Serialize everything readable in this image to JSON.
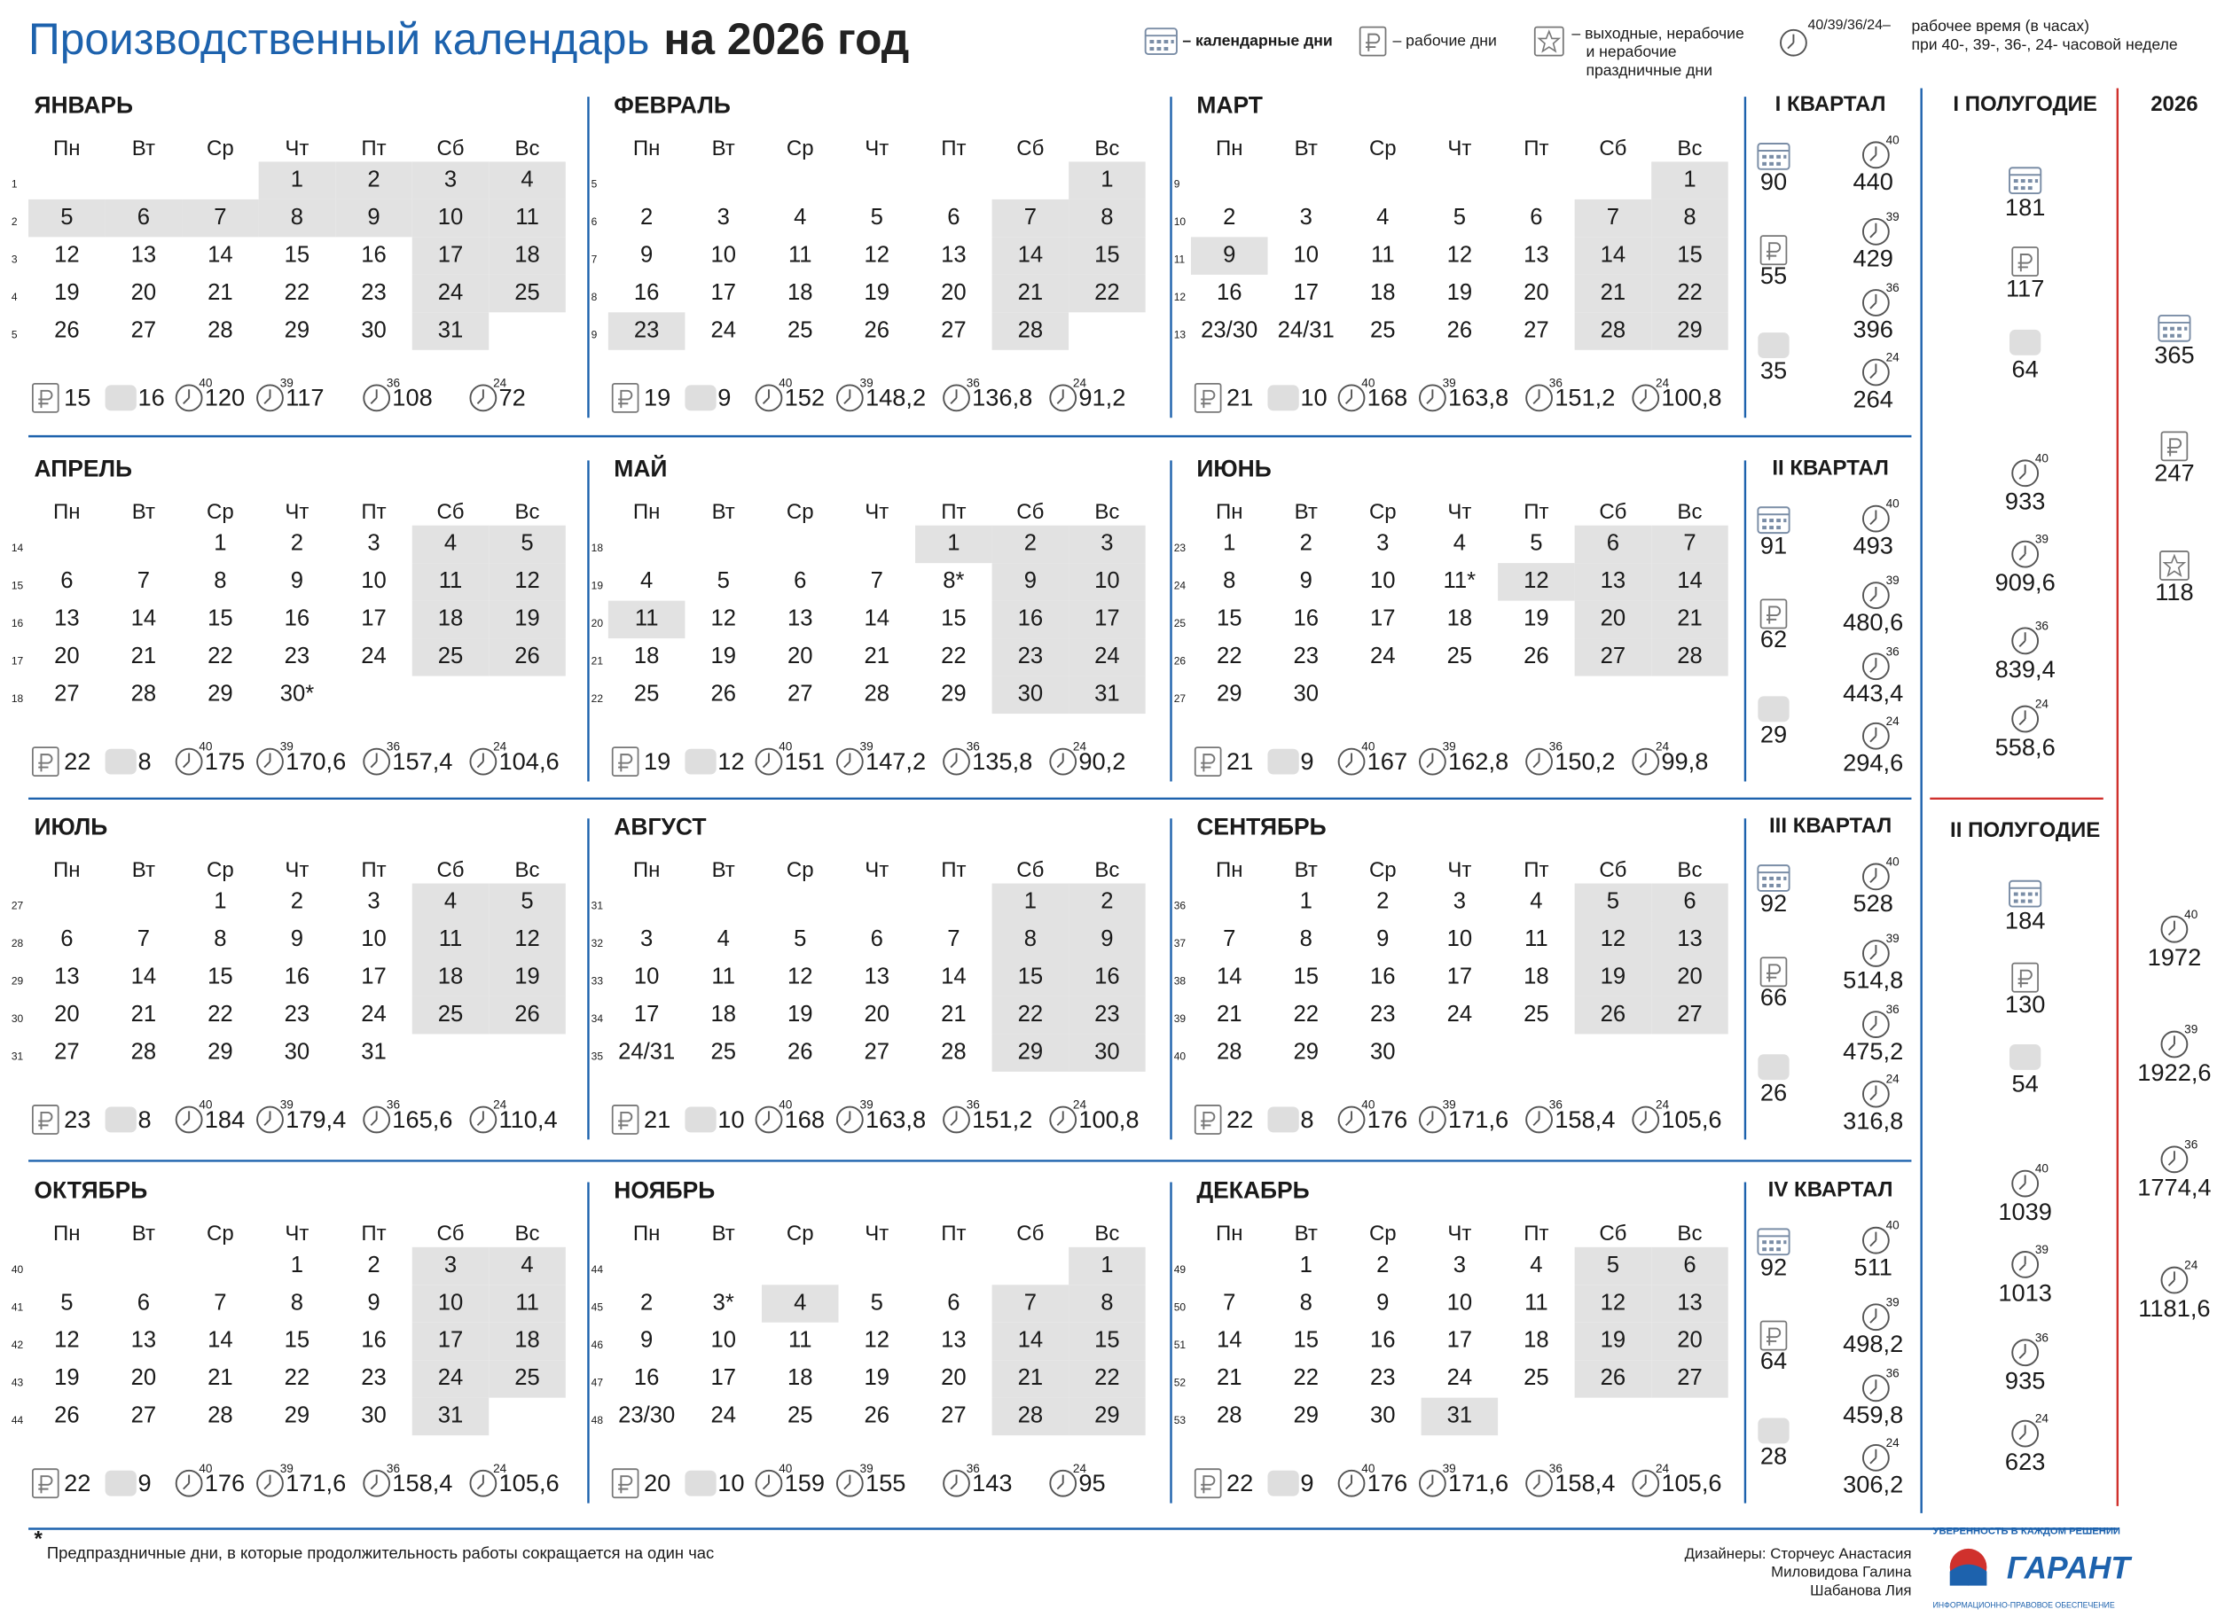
{
  "header": {
    "title_main": "Производственный календарь",
    "title_year": "на 2026 год"
  },
  "legend": {
    "calendar_days": "– календарные дни",
    "working_days": "– рабочие дни",
    "days_off": [
      "– выходные, нерабочие",
      "и нерабочие",
      "праздничные дни"
    ],
    "hours_label": "40/39/36/24–",
    "hours_text": [
      "рабочее время (в часах)",
      "при 40-, 39-, 36-, 24- часовой неделе"
    ]
  },
  "weekdays": [
    "Пн",
    "Вт",
    "Ср",
    "Чт",
    "Пт",
    "Сб",
    "Вс"
  ],
  "hour_norms": [
    "40",
    "39",
    "36",
    "24"
  ],
  "months": [
    {
      "name": "ЯНВАРЬ",
      "holidays": [
        1,
        2,
        5,
        6,
        7,
        8,
        9
      ],
      "weeks": [
        {
          "week": 1,
          "days": [
            null,
            null,
            null,
            1,
            2,
            3,
            4
          ]
        },
        {
          "week": 2,
          "days": [
            5,
            6,
            7,
            8,
            9,
            10,
            11
          ]
        },
        {
          "week": 3,
          "days": [
            12,
            13,
            14,
            15,
            16,
            17,
            18
          ]
        },
        {
          "week": 4,
          "days": [
            19,
            20,
            21,
            22,
            23,
            24,
            25
          ]
        },
        {
          "week": 5,
          "days": [
            26,
            27,
            28,
            29,
            30,
            31,
            null
          ]
        }
      ],
      "working_days": 15,
      "days_off": 16,
      "hours": [
        120,
        117,
        108,
        72
      ]
    },
    {
      "name": "ФЕВРАЛЬ",
      "holidays": [
        23
      ],
      "weeks": [
        {
          "week": 5,
          "days": [
            null,
            null,
            null,
            null,
            null,
            null,
            1
          ]
        },
        {
          "week": 6,
          "days": [
            2,
            3,
            4,
            5,
            6,
            7,
            8
          ]
        },
        {
          "week": 7,
          "days": [
            9,
            10,
            11,
            12,
            13,
            14,
            15
          ]
        },
        {
          "week": 8,
          "days": [
            16,
            17,
            18,
            19,
            20,
            21,
            22
          ]
        },
        {
          "week": 9,
          "days": [
            23,
            24,
            25,
            26,
            27,
            28,
            null
          ]
        }
      ],
      "working_days": 19,
      "days_off": 9,
      "hours": [
        152,
        "148,2",
        "136,8",
        "91,2"
      ]
    },
    {
      "name": "МАРТ",
      "holidays": [
        9
      ],
      "weeks": [
        {
          "week": 9,
          "days": [
            null,
            null,
            null,
            null,
            null,
            null,
            1
          ]
        },
        {
          "week": 10,
          "days": [
            2,
            3,
            4,
            5,
            6,
            7,
            8
          ]
        },
        {
          "week": 11,
          "days": [
            9,
            10,
            11,
            12,
            13,
            14,
            15
          ]
        },
        {
          "week": 12,
          "days": [
            16,
            17,
            18,
            19,
            20,
            21,
            22
          ]
        },
        {
          "week": 13,
          "days": [
            "23/30",
            "24/31",
            25,
            26,
            27,
            28,
            29
          ]
        }
      ],
      "working_days": 21,
      "days_off": 10,
      "hours": [
        168,
        "163,8",
        "151,2",
        "100,8"
      ]
    },
    {
      "name": "АПРЕЛЬ",
      "holidays": [],
      "weeks": [
        {
          "week": 14,
          "days": [
            null,
            null,
            1,
            2,
            3,
            4,
            5
          ]
        },
        {
          "week": 15,
          "days": [
            6,
            7,
            8,
            9,
            10,
            11,
            12
          ]
        },
        {
          "week": 16,
          "days": [
            13,
            14,
            15,
            16,
            17,
            18,
            19
          ]
        },
        {
          "week": 17,
          "days": [
            20,
            21,
            22,
            23,
            24,
            25,
            26
          ]
        },
        {
          "week": 18,
          "days": [
            27,
            28,
            29,
            "30*",
            null,
            null,
            null
          ]
        }
      ],
      "working_days": 22,
      "days_off": 8,
      "hours": [
        175,
        "170,6",
        "157,4",
        "104,6"
      ]
    },
    {
      "name": "МАЙ",
      "holidays": [
        1,
        11
      ],
      "weeks": [
        {
          "week": 18,
          "days": [
            null,
            null,
            null,
            null,
            1,
            2,
            3
          ]
        },
        {
          "week": 19,
          "days": [
            4,
            5,
            6,
            7,
            "8*",
            9,
            10
          ]
        },
        {
          "week": 20,
          "days": [
            11,
            12,
            13,
            14,
            15,
            16,
            17
          ]
        },
        {
          "week": 21,
          "days": [
            18,
            19,
            20,
            21,
            22,
            23,
            24
          ]
        },
        {
          "week": 22,
          "days": [
            25,
            26,
            27,
            28,
            29,
            30,
            31
          ]
        }
      ],
      "working_days": 19,
      "days_off": 12,
      "hours": [
        151,
        "147,2",
        "135,8",
        "90,2"
      ]
    },
    {
      "name": "ИЮНЬ",
      "holidays": [
        12
      ],
      "weeks": [
        {
          "week": 23,
          "days": [
            1,
            2,
            3,
            4,
            5,
            6,
            7
          ]
        },
        {
          "week": 24,
          "days": [
            8,
            9,
            10,
            "11*",
            12,
            13,
            14
          ]
        },
        {
          "week": 25,
          "days": [
            15,
            16,
            17,
            18,
            19,
            20,
            21
          ]
        },
        {
          "week": 26,
          "days": [
            22,
            23,
            24,
            25,
            26,
            27,
            28
          ]
        },
        {
          "week": 27,
          "days": [
            29,
            30,
            null,
            null,
            null,
            null,
            null
          ]
        }
      ],
      "working_days": 21,
      "days_off": 9,
      "hours": [
        167,
        "162,8",
        "150,2",
        "99,8"
      ]
    },
    {
      "name": "ИЮЛЬ",
      "holidays": [],
      "weeks": [
        {
          "week": 27,
          "days": [
            null,
            null,
            1,
            2,
            3,
            4,
            5
          ]
        },
        {
          "week": 28,
          "days": [
            6,
            7,
            8,
            9,
            10,
            11,
            12
          ]
        },
        {
          "week": 29,
          "days": [
            13,
            14,
            15,
            16,
            17,
            18,
            19
          ]
        },
        {
          "week": 30,
          "days": [
            20,
            21,
            22,
            23,
            24,
            25,
            26
          ]
        },
        {
          "week": 31,
          "days": [
            27,
            28,
            29,
            30,
            31,
            null,
            null
          ]
        }
      ],
      "working_days": 23,
      "days_off": 8,
      "hours": [
        184,
        "179,4",
        "165,6",
        "110,4"
      ]
    },
    {
      "name": "АВГУСТ",
      "holidays": [],
      "weeks": [
        {
          "week": 31,
          "days": [
            null,
            null,
            null,
            null,
            null,
            1,
            2
          ]
        },
        {
          "week": 32,
          "days": [
            3,
            4,
            5,
            6,
            7,
            8,
            9
          ]
        },
        {
          "week": 33,
          "days": [
            10,
            11,
            12,
            13,
            14,
            15,
            16
          ]
        },
        {
          "week": 34,
          "days": [
            17,
            18,
            19,
            20,
            21,
            22,
            23
          ]
        },
        {
          "week": 35,
          "days": [
            "24/31",
            25,
            26,
            27,
            28,
            29,
            30
          ]
        }
      ],
      "working_days": 21,
      "days_off": 10,
      "hours": [
        168,
        "163,8",
        "151,2",
        "100,8"
      ]
    },
    {
      "name": "СЕНТЯБРЬ",
      "holidays": [],
      "weeks": [
        {
          "week": 36,
          "days": [
            null,
            1,
            2,
            3,
            4,
            5,
            6
          ]
        },
        {
          "week": 37,
          "days": [
            7,
            8,
            9,
            10,
            11,
            12,
            13
          ]
        },
        {
          "week": 38,
          "days": [
            14,
            15,
            16,
            17,
            18,
            19,
            20
          ]
        },
        {
          "week": 39,
          "days": [
            21,
            22,
            23,
            24,
            25,
            26,
            27
          ]
        },
        {
          "week": 40,
          "days": [
            28,
            29,
            30,
            null,
            null,
            null,
            null
          ]
        }
      ],
      "working_days": 22,
      "days_off": 8,
      "hours": [
        176,
        "171,6",
        "158,4",
        "105,6"
      ]
    },
    {
      "name": "ОКТЯБРЬ",
      "holidays": [],
      "weeks": [
        {
          "week": 40,
          "days": [
            null,
            null,
            null,
            1,
            2,
            3,
            4
          ]
        },
        {
          "week": 41,
          "days": [
            5,
            6,
            7,
            8,
            9,
            10,
            11
          ]
        },
        {
          "week": 42,
          "days": [
            12,
            13,
            14,
            15,
            16,
            17,
            18
          ]
        },
        {
          "week": 43,
          "days": [
            19,
            20,
            21,
            22,
            23,
            24,
            25
          ]
        },
        {
          "week": 44,
          "days": [
            26,
            27,
            28,
            29,
            30,
            31,
            null
          ]
        }
      ],
      "working_days": 22,
      "days_off": 9,
      "hours": [
        176,
        "171,6",
        "158,4",
        "105,6"
      ]
    },
    {
      "name": "НОЯБРЬ",
      "holidays": [
        4
      ],
      "weeks": [
        {
          "week": 44,
          "days": [
            null,
            null,
            null,
            null,
            null,
            null,
            1
          ]
        },
        {
          "week": 45,
          "days": [
            2,
            "3*",
            4,
            5,
            6,
            7,
            8
          ]
        },
        {
          "week": 46,
          "days": [
            9,
            10,
            11,
            12,
            13,
            14,
            15
          ]
        },
        {
          "week": 47,
          "days": [
            16,
            17,
            18,
            19,
            20,
            21,
            22
          ]
        },
        {
          "week": 48,
          "days": [
            "23/30",
            24,
            25,
            26,
            27,
            28,
            29
          ]
        }
      ],
      "working_days": 20,
      "days_off": 10,
      "hours": [
        159,
        155,
        143,
        95
      ]
    },
    {
      "name": "ДЕКАБРЬ",
      "holidays": [
        31
      ],
      "weeks": [
        {
          "week": 49,
          "days": [
            null,
            1,
            2,
            3,
            4,
            5,
            6
          ]
        },
        {
          "week": 50,
          "days": [
            7,
            8,
            9,
            10,
            11,
            12,
            13
          ]
        },
        {
          "week": 51,
          "days": [
            14,
            15,
            16,
            17,
            18,
            19,
            20
          ]
        },
        {
          "week": 52,
          "days": [
            21,
            22,
            23,
            24,
            25,
            26,
            27
          ]
        },
        {
          "week": 53,
          "days": [
            28,
            29,
            30,
            31,
            null,
            null,
            null
          ]
        }
      ],
      "working_days": 22,
      "days_off": 9,
      "hours": [
        176,
        "171,6",
        "158,4",
        "105,6"
      ]
    }
  ],
  "quarters": [
    {
      "title": "I КВАРТАЛ",
      "calendar_days": 90,
      "working_days": 55,
      "days_off": 35,
      "hours": [
        440,
        429,
        396,
        264
      ]
    },
    {
      "title": "II КВАРТАЛ",
      "calendar_days": 91,
      "working_days": 62,
      "days_off": 29,
      "hours": [
        493,
        "480,6",
        "443,4",
        "294,6"
      ]
    },
    {
      "title": "III КВАРТАЛ",
      "calendar_days": 92,
      "working_days": 66,
      "days_off": 26,
      "hours": [
        528,
        "514,8",
        "475,2",
        "316,8"
      ]
    },
    {
      "title": "IV КВАРТАЛ",
      "calendar_days": 92,
      "working_days": 64,
      "days_off": 28,
      "hours": [
        511,
        "498,2",
        "459,8",
        "306,2"
      ]
    }
  ],
  "half_years": [
    {
      "title": "I ПОЛУГОДИЕ",
      "calendar_days": 181,
      "working_days": 117,
      "days_off": 64,
      "hours": [
        933,
        "909,6",
        "839,4",
        "558,6"
      ]
    },
    {
      "title": "II ПОЛУГОДИЕ",
      "calendar_days": 184,
      "working_days": 130,
      "days_off": 54,
      "hours": [
        1039,
        1013,
        935,
        623
      ]
    }
  ],
  "year": {
    "title": "2026",
    "calendar_days": 365,
    "working_days": 247,
    "days_off": 118,
    "hours": [
      1972,
      "1922,6",
      "1774,4",
      "1181,6"
    ]
  },
  "footnote": {
    "mark": "*",
    "text": "Предпраздничные дни, в которые продолжительность работы сокращается на один час"
  },
  "designers": [
    "Дизайнеры: Сторчеус Анастасия",
    "Миловидова Галина",
    "Шабанова Лия"
  ],
  "logo": {
    "slogan": "УВЕРЕННОСТЬ В КАЖДОМ РЕШЕНИИ",
    "name": "ГАРАНТ",
    "subtitle": "ИНФОРМАЦИОННО-ПРАВОВОЕ ОБЕСПЕЧЕНИЕ"
  }
}
